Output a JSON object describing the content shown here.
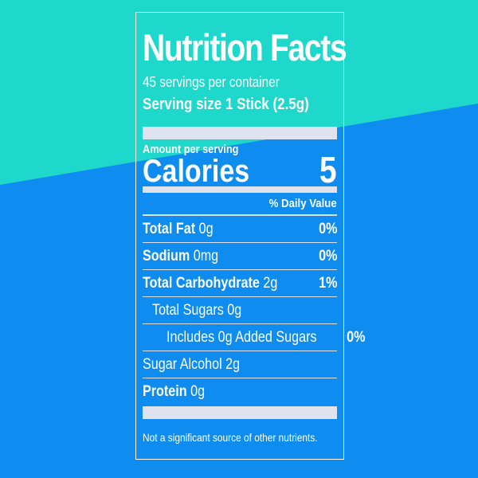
{
  "colors": {
    "teal": "#1ed9cb",
    "blue": "#0e8cf0",
    "label_line": "#dfe3ef",
    "text": "#ffffff"
  },
  "label": {
    "title": "Nutrition Facts",
    "servings_per_container": "45 servings per container",
    "serving_size_label": "Serving size",
    "serving_size_value": "1 Stick (2.5g)",
    "amount_per_serving": "Amount per serving",
    "calories_label": "Calories",
    "calories_value": "5",
    "daily_value_header": "% Daily Value",
    "nutrients": [
      {
        "name": "Total Fat",
        "amount": "0g",
        "dv": "0%"
      },
      {
        "name": "Sodium",
        "amount": "0mg",
        "dv": "0%"
      },
      {
        "name": "Total Carbohydrate",
        "amount": "2g",
        "dv": "1%"
      },
      {
        "name": "Total Sugars",
        "amount": "0g",
        "dv": ""
      },
      {
        "name": "Includes 0g Added Sugars",
        "amount": "",
        "dv": "0%"
      },
      {
        "name": "Sugar Alcohol",
        "amount": "2g",
        "dv": ""
      },
      {
        "name": "Protein",
        "amount": "0g",
        "dv": ""
      }
    ],
    "footnote": "Not a significant source of other nutrients."
  }
}
